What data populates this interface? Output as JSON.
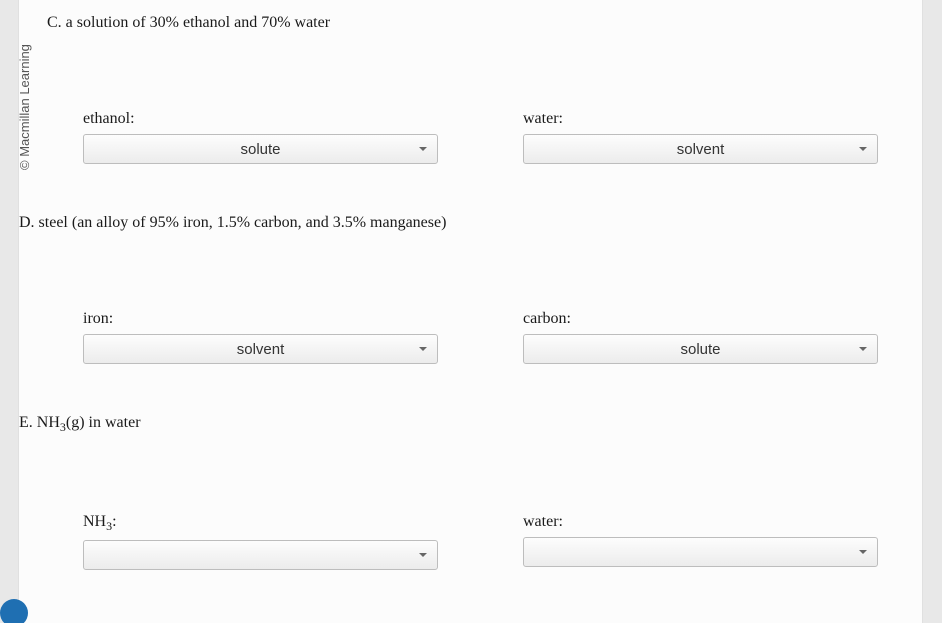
{
  "copyright": "© Macmillan Learning",
  "questions": {
    "C": {
      "prompt": "C. a solution of 30% ethanol and 70% water",
      "left": {
        "label": "ethanol:",
        "value": "solute"
      },
      "right": {
        "label": "water:",
        "value": "solvent"
      }
    },
    "D": {
      "prompt": "D. steel (an alloy of 95% iron, 1.5% carbon, and 3.5% manganese)",
      "left": {
        "label": "iron:",
        "value": "solvent"
      },
      "right": {
        "label": "carbon:",
        "value": "solute"
      }
    },
    "E": {
      "prompt_prefix": "E. NH",
      "prompt_sub": "3",
      "prompt_suffix": "(g) in water",
      "left": {
        "label_prefix": "NH",
        "label_sub": "3",
        "label_suffix": ":",
        "value": ""
      },
      "right": {
        "label": "water:",
        "value": ""
      }
    }
  },
  "colors": {
    "paper_bg": "#fcfcfc",
    "page_bg": "#e8e8e8",
    "dropdown_border": "#bdbdbd",
    "text": "#1a1a1a",
    "accent_circle": "#1f6fb2"
  }
}
